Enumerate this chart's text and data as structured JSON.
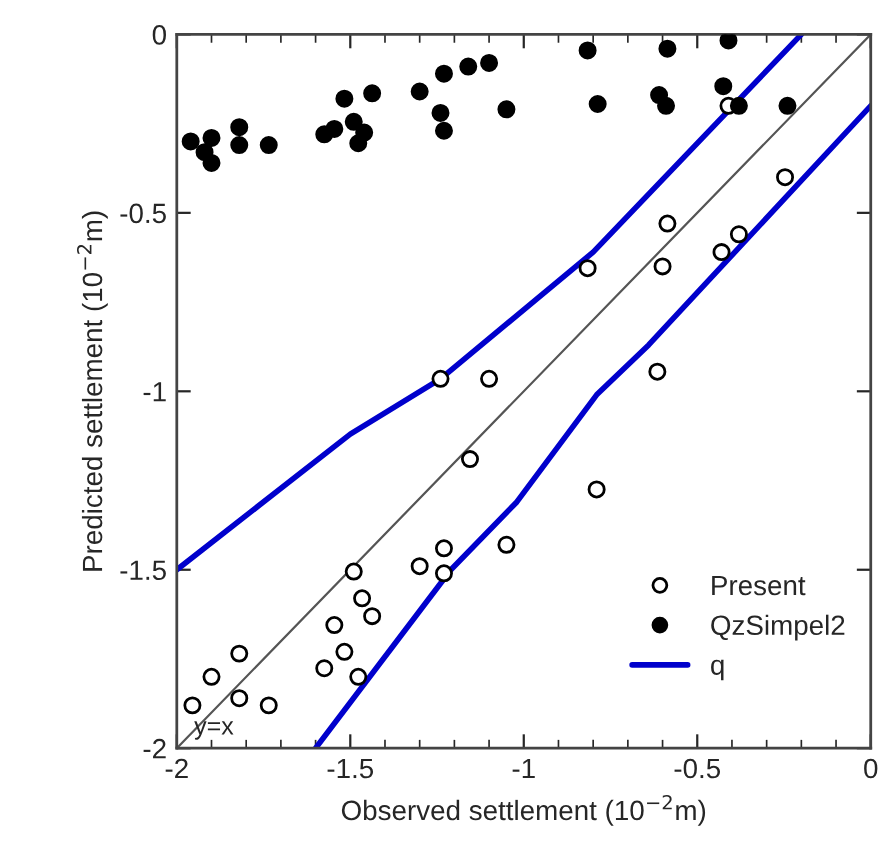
{
  "chart_data": {
    "type": "scatter",
    "xlabel": "Observed settlement (10$^{−2}$m)",
    "ylabel": "Predicted settlement (10$^{−2}$m)",
    "xlim": [
      -2,
      0
    ],
    "ylim": [
      -2,
      0
    ],
    "xticks": [
      -2,
      -1.5,
      -1,
      -0.5,
      0
    ],
    "yticks": [
      -2,
      -1.5,
      -1,
      -0.5,
      0
    ],
    "grid": false,
    "legend": "bottom right",
    "annotations": [
      "y=x"
    ],
    "series": [
      {
        "name": "Present",
        "marker": "circle",
        "color": "#ffffff",
        "x": [
          -0.247,
          -0.38,
          -0.586,
          -0.41,
          -0.43,
          -0.816,
          -0.6,
          -1.24,
          -1.1,
          -0.615,
          -1.155,
          -0.79,
          -1.05,
          -1.3,
          -1.23,
          -1.23,
          -1.49,
          -1.466,
          -1.437,
          -1.546,
          -1.517,
          -1.575,
          -1.477,
          -1.82,
          -1.9,
          -1.955,
          -1.82,
          -1.735
        ],
        "values": [
          -0.4,
          -0.56,
          -0.53,
          -0.2,
          -0.61,
          -0.655,
          -0.65,
          -0.965,
          -0.965,
          -0.945,
          -1.19,
          -1.275,
          -1.43,
          -1.49,
          -1.44,
          -1.51,
          -1.505,
          -1.58,
          -1.63,
          -1.655,
          -1.73,
          -1.776,
          -1.8,
          -1.735,
          -1.8,
          -1.88,
          -1.86,
          -1.88
        ]
      },
      {
        "name": "QzSimpel2",
        "marker": "circle",
        "color": "#000000",
        "x": [
          -1.96,
          -1.9,
          -1.92,
          -1.9,
          -1.82,
          -1.82,
          -1.735,
          -1.575,
          -1.546,
          -1.517,
          -1.49,
          -1.46,
          -1.477,
          -1.437,
          -1.3,
          -1.24,
          -1.23,
          -1.23,
          -1.16,
          -1.1,
          -1.05,
          -0.816,
          -0.787,
          -0.586,
          -0.61,
          -0.59,
          -0.41,
          -0.425,
          -0.38,
          -0.24
        ],
        "values": [
          -0.3,
          -0.29,
          -0.33,
          -0.36,
          -0.26,
          -0.31,
          -0.31,
          -0.28,
          -0.265,
          -0.18,
          -0.245,
          -0.275,
          -0.305,
          -0.165,
          -0.16,
          -0.22,
          -0.27,
          -0.11,
          -0.09,
          -0.08,
          -0.21,
          -0.045,
          -0.195,
          -0.04,
          -0.17,
          -0.2,
          -0.017,
          -0.145,
          -0.2,
          -0.2
        ]
      },
      {
        "name": "q",
        "type": "line",
        "marker": "none",
        "color": "#0000cc",
        "x": [
          -2,
          -1.5,
          -1.24,
          -0.8,
          -0.2
        ],
        "values": [
          -1.5,
          -1.12,
          -0.965,
          -0.61,
          0
        ]
      },
      {
        "type": "line",
        "marker": "none",
        "color": "#0000cc",
        "x": [
          -1.6,
          -1.21,
          -1.02,
          -0.79,
          -0.64,
          0
        ],
        "values": [
          -2,
          -1.5,
          -1.31,
          -1.01,
          -0.87,
          -0.2
        ]
      },
      {
        "type": "line",
        "marker": "none",
        "color": "#555555",
        "x": [
          -2,
          0
        ],
        "values": [
          -2,
          0
        ]
      }
    ]
  }
}
